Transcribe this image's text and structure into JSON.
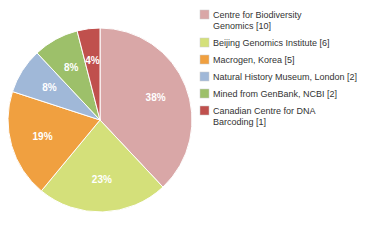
{
  "chart_data": {
    "type": "pie",
    "categories": [
      "Centre for Biodiversity\nGenomics [10]",
      "Beijing Genomics Institute [6]",
      "Macrogen, Korea [5]",
      "Natural History Museum, London [2]",
      "Mined from GenBank, NCBI [2]",
      "Canadian Centre for DNA\nBarcoding [1]"
    ],
    "values": [
      38,
      23,
      19,
      8,
      8,
      4
    ],
    "value_labels": [
      "38%",
      "23%",
      "19%",
      "8%",
      "8%",
      "4%"
    ],
    "colors": [
      "#d9a7a7",
      "#d4e07a",
      "#f0a040",
      "#a0b8d8",
      "#9dc06a",
      "#c0504d"
    ],
    "data_labels": true,
    "legend": "right"
  }
}
